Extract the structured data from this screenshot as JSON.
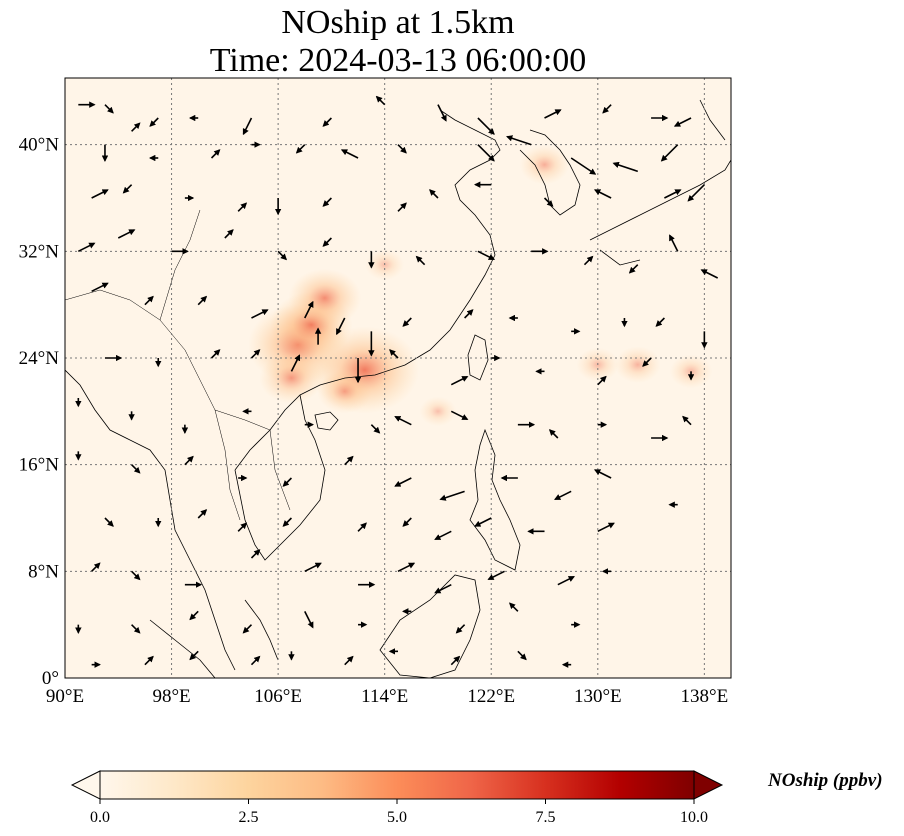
{
  "title": {
    "line1": "NOship at 1.5km",
    "line2": "Time: 2024-03-13 06:00:00"
  },
  "chart_data": {
    "type": "heatmap",
    "variable": "NOship",
    "units": "ppbv",
    "colorbar": {
      "label": "NOship (ppbv)",
      "min": 0.0,
      "max": 10.0,
      "ticks": [
        "0.0",
        "2.5",
        "5.0",
        "7.5",
        "10.0"
      ],
      "colormap": "OrRd",
      "extend": "both",
      "stops": [
        "#fff7ec",
        "#fee8c8",
        "#fdd49e",
        "#fdbb84",
        "#fc8d59",
        "#ef6548",
        "#d7301f",
        "#b30000",
        "#7f0000"
      ]
    },
    "x_range": [
      90,
      140
    ],
    "y_range": [
      0,
      45
    ],
    "grid": true,
    "x_ticks": [
      {
        "value": 90,
        "label": "90°E"
      },
      {
        "value": 98,
        "label": "98°E"
      },
      {
        "value": 106,
        "label": "106°E"
      },
      {
        "value": 114,
        "label": "114°E"
      },
      {
        "value": 122,
        "label": "122°E"
      },
      {
        "value": 130,
        "label": "130°E"
      },
      {
        "value": 138,
        "label": "138°E"
      }
    ],
    "y_ticks": [
      {
        "value": 0,
        "label": "0°"
      },
      {
        "value": 8,
        "label": "8°N"
      },
      {
        "value": 16,
        "label": "16°N"
      },
      {
        "value": 24,
        "label": "24°N"
      },
      {
        "value": 32,
        "label": "32°N"
      },
      {
        "value": 40,
        "label": "40°N"
      }
    ],
    "hotspots": [
      {
        "lon": 107.5,
        "lat": 25.0,
        "value": 4.0
      },
      {
        "lon": 108.5,
        "lat": 26.5,
        "value": 3.0
      },
      {
        "lon": 109.5,
        "lat": 28.5,
        "value": 2.5
      },
      {
        "lon": 112.5,
        "lat": 23.1,
        "value": 4.5
      },
      {
        "lon": 107.0,
        "lat": 22.5,
        "value": 2.0
      },
      {
        "lon": 111.0,
        "lat": 21.5,
        "value": 1.5
      },
      {
        "lon": 126.0,
        "lat": 38.5,
        "value": 1.2
      },
      {
        "lon": 133.0,
        "lat": 23.5,
        "value": 1.0
      },
      {
        "lon": 130.0,
        "lat": 23.5,
        "value": 0.8
      },
      {
        "lon": 137.0,
        "lat": 23.0,
        "value": 0.8
      },
      {
        "lon": 114.0,
        "lat": 31.0,
        "value": 0.6
      },
      {
        "lon": 118.0,
        "lat": 20.0,
        "value": 0.5
      }
    ],
    "wind_vectors": [
      [
        91,
        43,
        2,
        0
      ],
      [
        93,
        43,
        1,
        -1
      ],
      [
        95,
        41,
        1,
        1
      ],
      [
        97,
        42,
        -1,
        -1
      ],
      [
        100,
        42,
        -1,
        0
      ],
      [
        104,
        42,
        -1,
        -2
      ],
      [
        110,
        42,
        -1,
        -1
      ],
      [
        114,
        43,
        -1,
        1
      ],
      [
        118,
        43,
        1,
        -2
      ],
      [
        121,
        42,
        2,
        -2
      ],
      [
        126,
        42,
        2,
        1
      ],
      [
        131,
        43,
        -1,
        -1
      ],
      [
        134,
        42,
        2,
        0
      ],
      [
        137,
        42,
        -2,
        -1
      ],
      [
        93,
        40,
        0,
        -2
      ],
      [
        97,
        39,
        -1,
        0
      ],
      [
        101,
        39,
        1,
        1
      ],
      [
        104,
        40,
        1,
        0
      ],
      [
        108,
        40,
        -1,
        -1
      ],
      [
        112,
        39,
        -2,
        1
      ],
      [
        115,
        40,
        1,
        -1
      ],
      [
        121,
        40,
        2,
        -2
      ],
      [
        125,
        40,
        -3,
        1
      ],
      [
        128,
        39,
        3,
        -2
      ],
      [
        133,
        38,
        -3,
        1
      ],
      [
        136,
        40,
        -2,
        -2
      ],
      [
        92,
        36,
        2,
        1
      ],
      [
        95,
        37,
        -1,
        -1
      ],
      [
        99,
        36,
        1,
        0
      ],
      [
        103,
        35,
        1,
        1
      ],
      [
        106,
        36,
        0,
        -2
      ],
      [
        110,
        36,
        -1,
        -1
      ],
      [
        115,
        35,
        1,
        1
      ],
      [
        118,
        36,
        -1,
        1
      ],
      [
        122,
        37,
        -2,
        0
      ],
      [
        126,
        36,
        1,
        -1
      ],
      [
        131,
        36,
        -2,
        1
      ],
      [
        135,
        36,
        2,
        1
      ],
      [
        138,
        37,
        -2,
        -2
      ],
      [
        91,
        32,
        2,
        1
      ],
      [
        94,
        33,
        2,
        1
      ],
      [
        98,
        32,
        2,
        0
      ],
      [
        102,
        33,
        1,
        1
      ],
      [
        106,
        32,
        1,
        -1
      ],
      [
        110,
        33,
        -1,
        -1
      ],
      [
        113,
        32,
        0,
        -2
      ],
      [
        117,
        31,
        -1,
        1
      ],
      [
        121,
        32,
        2,
        -1
      ],
      [
        125,
        32,
        2,
        0
      ],
      [
        129,
        31,
        1,
        1
      ],
      [
        133,
        31,
        -1,
        -1
      ],
      [
        136,
        32,
        -1,
        2
      ],
      [
        139,
        30,
        -2,
        1
      ],
      [
        92,
        29,
        2,
        1
      ],
      [
        96,
        28,
        1,
        1
      ],
      [
        100,
        28,
        1,
        1
      ],
      [
        104,
        27,
        2,
        1
      ],
      [
        108,
        27,
        1,
        2
      ],
      [
        111,
        27,
        -1,
        -2
      ],
      [
        113,
        26,
        0,
        -3
      ],
      [
        116,
        27,
        -1,
        -1
      ],
      [
        120,
        27,
        1,
        1
      ],
      [
        124,
        27,
        -1,
        0
      ],
      [
        128,
        26,
        1,
        0
      ],
      [
        132,
        27,
        0,
        -1
      ],
      [
        135,
        27,
        -1,
        -1
      ],
      [
        138,
        26,
        0,
        -2
      ],
      [
        93,
        24,
        2,
        0
      ],
      [
        97,
        24,
        0,
        -1
      ],
      [
        101,
        24,
        1,
        1
      ],
      [
        104,
        24,
        1,
        1
      ],
      [
        107,
        23,
        1,
        2
      ],
      [
        109,
        25,
        0,
        2
      ],
      [
        112,
        24,
        0,
        -3
      ],
      [
        115,
        24,
        -1,
        1
      ],
      [
        119,
        22,
        2,
        1
      ],
      [
        122,
        24,
        1,
        0
      ],
      [
        126,
        23,
        -1,
        0
      ],
      [
        130,
        22,
        1,
        1
      ],
      [
        134,
        24,
        -1,
        -1
      ],
      [
        137,
        23,
        0,
        -1
      ],
      [
        91,
        21,
        0,
        -1
      ],
      [
        95,
        20,
        0,
        -1
      ],
      [
        99,
        19,
        0,
        -1
      ],
      [
        104,
        20,
        -1,
        0
      ],
      [
        108,
        19,
        1,
        0
      ],
      [
        113,
        19,
        1,
        -1
      ],
      [
        116,
        19,
        -2,
        1
      ],
      [
        119,
        20,
        2,
        -1
      ],
      [
        124,
        19,
        2,
        0
      ],
      [
        127,
        18,
        -1,
        1
      ],
      [
        130,
        19,
        1,
        0
      ],
      [
        134,
        18,
        2,
        0
      ],
      [
        137,
        19,
        -1,
        1
      ],
      [
        91,
        17,
        0,
        -1
      ],
      [
        95,
        16,
        1,
        -1
      ],
      [
        99,
        16,
        1,
        1
      ],
      [
        103,
        15,
        1,
        0
      ],
      [
        107,
        15,
        -1,
        -1
      ],
      [
        111,
        16,
        1,
        1
      ],
      [
        116,
        15,
        -2,
        -1
      ],
      [
        120,
        14,
        -3,
        -1
      ],
      [
        124,
        15,
        -2,
        0
      ],
      [
        128,
        14,
        -2,
        -1
      ],
      [
        131,
        15,
        -2,
        1
      ],
      [
        136,
        13,
        -1,
        0
      ],
      [
        93,
        12,
        1,
        -1
      ],
      [
        97,
        12,
        0,
        -1
      ],
      [
        100,
        12,
        1,
        1
      ],
      [
        103,
        11,
        1,
        1
      ],
      [
        107,
        12,
        -1,
        -1
      ],
      [
        112,
        11,
        1,
        1
      ],
      [
        116,
        12,
        -1,
        -1
      ],
      [
        119,
        11,
        -2,
        -1
      ],
      [
        122,
        12,
        -2,
        -1
      ],
      [
        126,
        11,
        -2,
        0
      ],
      [
        130,
        11,
        2,
        1
      ],
      [
        92,
        8,
        1,
        1
      ],
      [
        95,
        8,
        1,
        -1
      ],
      [
        99,
        7,
        2,
        0
      ],
      [
        104,
        9,
        1,
        1
      ],
      [
        108,
        8,
        2,
        1
      ],
      [
        112,
        7,
        2,
        0
      ],
      [
        115,
        8,
        2,
        1
      ],
      [
        119,
        7,
        -2,
        -1
      ],
      [
        123,
        8,
        -2,
        -1
      ],
      [
        127,
        7,
        2,
        1
      ],
      [
        131,
        8,
        -1,
        0
      ],
      [
        91,
        4,
        0,
        -1
      ],
      [
        95,
        4,
        1,
        -1
      ],
      [
        100,
        5,
        -1,
        -1
      ],
      [
        104,
        4,
        -1,
        -1
      ],
      [
        108,
        5,
        1,
        -2
      ],
      [
        112,
        4,
        1,
        0
      ],
      [
        116,
        5,
        -1,
        0
      ],
      [
        120,
        4,
        -1,
        -1
      ],
      [
        124,
        5,
        -1,
        1
      ],
      [
        128,
        4,
        1,
        0
      ],
      [
        92,
        1,
        1,
        0
      ],
      [
        96,
        1,
        1,
        1
      ],
      [
        100,
        2,
        -1,
        -1
      ],
      [
        104,
        1,
        1,
        1
      ],
      [
        107,
        2,
        0,
        -1
      ],
      [
        111,
        1,
        1,
        1
      ],
      [
        115,
        2,
        -1,
        0
      ],
      [
        119,
        1,
        1,
        1
      ],
      [
        124,
        2,
        1,
        -1
      ],
      [
        128,
        1,
        -1,
        0
      ]
    ]
  }
}
